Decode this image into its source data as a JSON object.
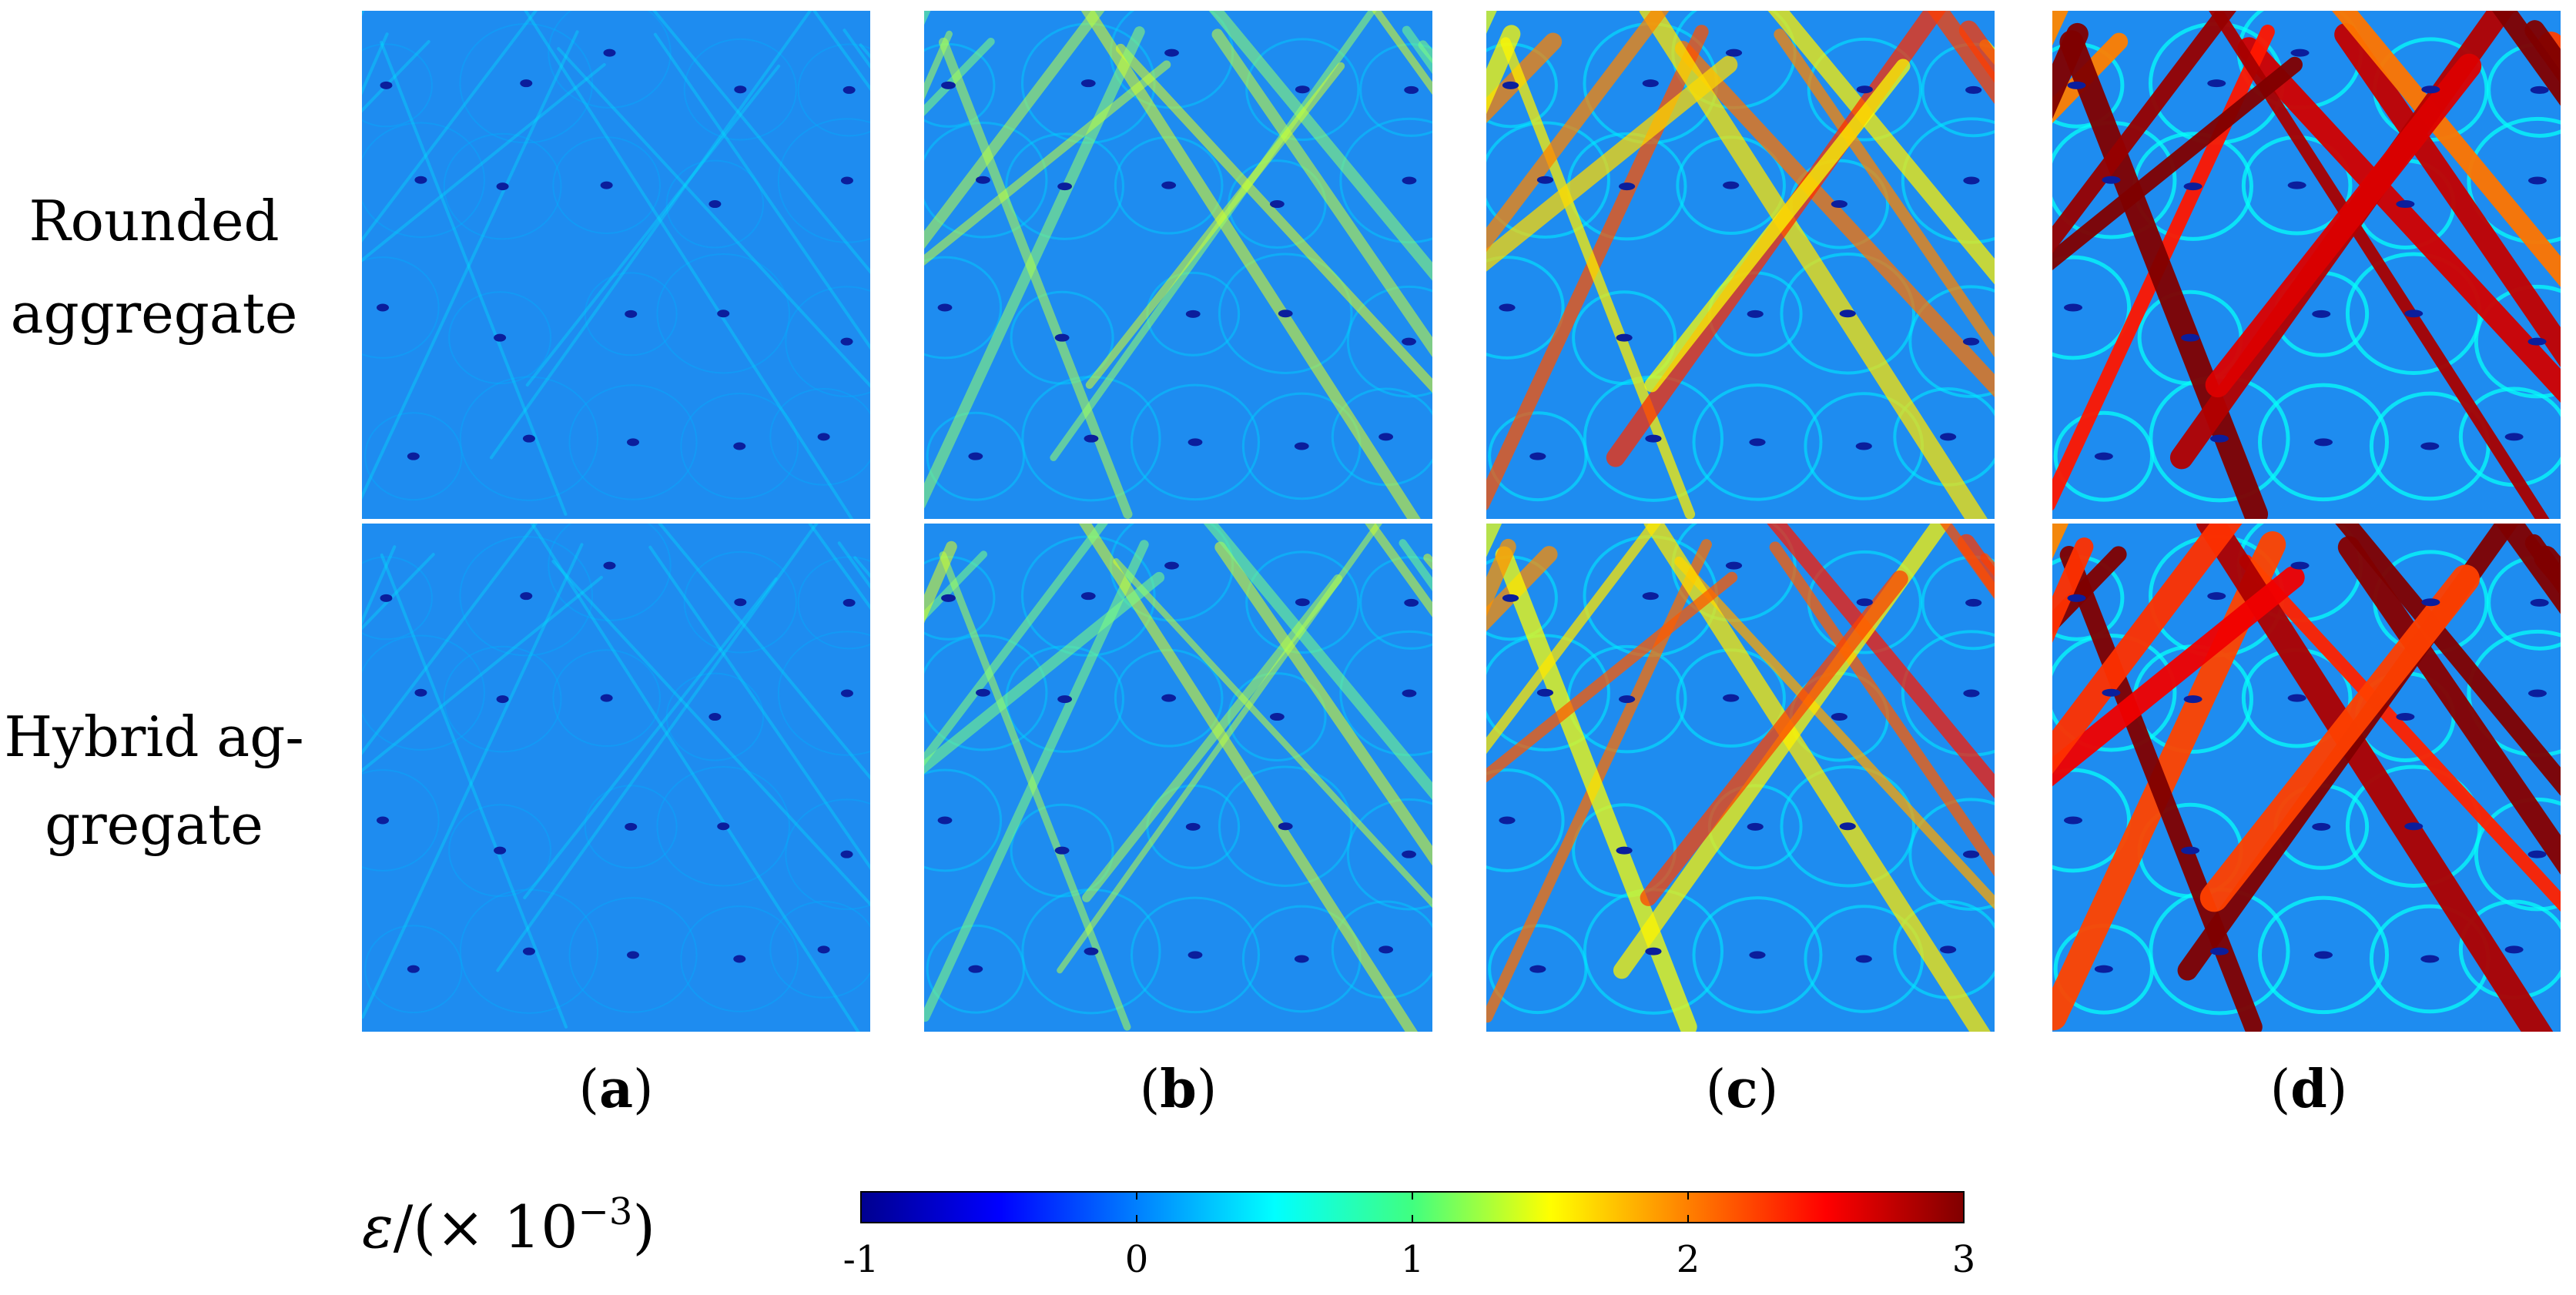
{
  "rows": [
    {
      "label_lines": [
        "Rounded",
        "aggregate"
      ]
    },
    {
      "label_lines": [
        "Hybrid ag-",
        "gregate"
      ]
    }
  ],
  "columns": [
    {
      "label": "a",
      "level": 0.0
    },
    {
      "label": "b",
      "level": 0.35
    },
    {
      "label": "c",
      "level": 0.65
    },
    {
      "label": "d",
      "level": 1.0
    }
  ],
  "colorbar": {
    "symbol": "ε",
    "unit_text": "/(× 10",
    "exponent": "−3",
    "close_paren": ")",
    "min": -1,
    "max": 3,
    "ticks": [
      "-1",
      "0",
      "1",
      "2",
      "3"
    ],
    "colormap": "jet"
  },
  "colors": {
    "background_field": "#1e8cf0",
    "low_strain": "#0b1e9c",
    "high_strain": "#a50000"
  }
}
